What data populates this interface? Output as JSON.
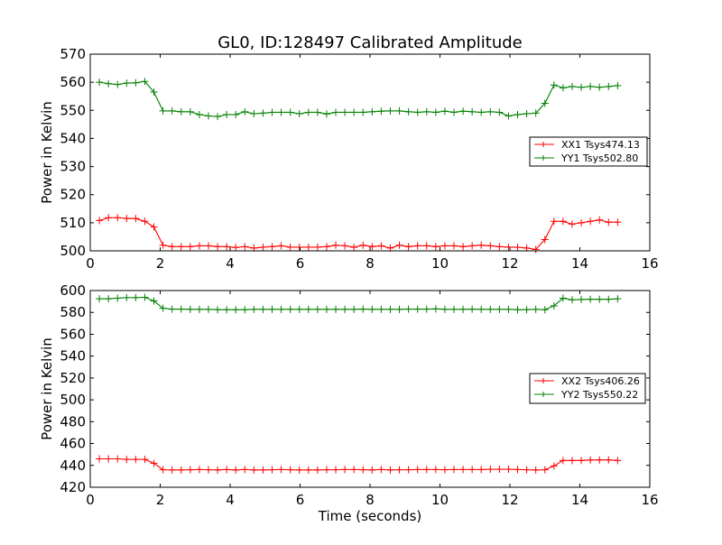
{
  "figure_title": "GL0, ID:128497 Calibrated Amplitude",
  "colors": {
    "red_series": "#ff0000",
    "green_series": "#008000",
    "axes": "#000000",
    "background": "#ffffff"
  },
  "chart_data": [
    {
      "type": "line",
      "title": "GL0, ID:128497 Calibrated Amplitude",
      "xlabel": "",
      "ylabel": "Power in Kelvin",
      "xlim": [
        0,
        16
      ],
      "ylim": [
        500,
        570
      ],
      "xticks": [
        0,
        2,
        4,
        6,
        8,
        10,
        12,
        14,
        16
      ],
      "yticks": [
        500,
        510,
        520,
        530,
        540,
        550,
        560,
        570
      ],
      "grid": false,
      "legend_position": "center-right",
      "marker": "+",
      "x": [
        0.26,
        0.52,
        0.78,
        1.04,
        1.3,
        1.56,
        1.82,
        2.08,
        2.34,
        2.6,
        2.86,
        3.12,
        3.38,
        3.64,
        3.9,
        4.16,
        4.42,
        4.68,
        4.94,
        5.2,
        5.46,
        5.72,
        5.98,
        6.24,
        6.5,
        6.76,
        7.02,
        7.28,
        7.54,
        7.8,
        8.06,
        8.32,
        8.58,
        8.84,
        9.1,
        9.36,
        9.62,
        9.88,
        10.14,
        10.4,
        10.66,
        10.92,
        11.18,
        11.44,
        11.7,
        11.96,
        12.22,
        12.48,
        12.74,
        13.0,
        13.26,
        13.52,
        13.78,
        14.04,
        14.3,
        14.56,
        14.82,
        15.08
      ],
      "series": [
        {
          "name": "XX1 Tsys474.13",
          "color": "#ff0000",
          "values": [
            510.8,
            511.8,
            511.8,
            511.5,
            511.5,
            510.5,
            508.5,
            502.0,
            501.5,
            501.5,
            501.5,
            501.8,
            501.8,
            501.5,
            501.5,
            501.2,
            501.5,
            501.0,
            501.3,
            501.5,
            501.8,
            501.3,
            501.3,
            501.3,
            501.3,
            501.5,
            502.0,
            501.8,
            501.3,
            502.0,
            501.5,
            501.8,
            501.0,
            502.0,
            501.5,
            501.8,
            501.8,
            501.5,
            501.8,
            501.8,
            501.5,
            501.8,
            502.0,
            501.8,
            501.5,
            501.3,
            501.3,
            501.0,
            500.5,
            504.0,
            510.5,
            510.5,
            509.5,
            510.0,
            510.5,
            511.0,
            510.2,
            510.2
          ]
        },
        {
          "name": "YY1 Tsys502.80",
          "color": "#008000",
          "values": [
            560.0,
            559.5,
            559.2,
            559.7,
            559.8,
            560.3,
            556.5,
            549.8,
            549.8,
            549.5,
            549.5,
            548.5,
            548.0,
            547.8,
            548.5,
            548.5,
            549.5,
            548.8,
            549.0,
            549.3,
            549.3,
            549.3,
            548.8,
            549.3,
            549.3,
            548.7,
            549.3,
            549.3,
            549.3,
            549.3,
            549.5,
            549.7,
            549.8,
            549.8,
            549.5,
            549.3,
            549.5,
            549.3,
            549.7,
            549.3,
            549.7,
            549.5,
            549.3,
            549.5,
            549.3,
            548.0,
            548.5,
            548.8,
            549.0,
            552.5,
            559.0,
            558.0,
            558.5,
            558.2,
            558.5,
            558.2,
            558.5,
            558.8
          ]
        }
      ]
    },
    {
      "type": "line",
      "title": "",
      "xlabel": "Time (seconds)",
      "ylabel": "Power in Kelvin",
      "xlim": [
        0,
        16
      ],
      "ylim": [
        420,
        600
      ],
      "xticks": [
        0,
        2,
        4,
        6,
        8,
        10,
        12,
        14,
        16
      ],
      "yticks": [
        420,
        440,
        460,
        480,
        500,
        520,
        540,
        560,
        580,
        600
      ],
      "grid": false,
      "legend_position": "center-right",
      "marker": "+",
      "x": [
        0.26,
        0.52,
        0.78,
        1.04,
        1.3,
        1.56,
        1.82,
        2.08,
        2.34,
        2.6,
        2.86,
        3.12,
        3.38,
        3.64,
        3.9,
        4.16,
        4.42,
        4.68,
        4.94,
        5.2,
        5.46,
        5.72,
        5.98,
        6.24,
        6.5,
        6.76,
        7.02,
        7.28,
        7.54,
        7.8,
        8.06,
        8.32,
        8.58,
        8.84,
        9.1,
        9.36,
        9.62,
        9.88,
        10.14,
        10.4,
        10.66,
        10.92,
        11.18,
        11.44,
        11.7,
        11.96,
        12.22,
        12.48,
        12.74,
        13.0,
        13.26,
        13.52,
        13.78,
        14.04,
        14.3,
        14.56,
        14.82,
        15.08
      ],
      "series": [
        {
          "name": "XX2 Tsys406.26",
          "color": "#ff0000",
          "values": [
            446.0,
            446.0,
            446.0,
            445.5,
            445.5,
            445.5,
            442.0,
            436.0,
            435.8,
            435.8,
            436.0,
            436.2,
            436.0,
            435.8,
            436.2,
            435.8,
            436.2,
            435.8,
            435.8,
            436.0,
            436.2,
            436.0,
            435.8,
            435.8,
            435.8,
            436.0,
            436.0,
            436.2,
            436.2,
            436.0,
            435.8,
            436.2,
            435.8,
            436.0,
            436.0,
            436.2,
            436.2,
            436.2,
            436.0,
            436.2,
            436.2,
            436.2,
            436.2,
            436.5,
            436.5,
            436.5,
            436.2,
            436.0,
            435.8,
            436.0,
            439.5,
            444.5,
            444.5,
            444.5,
            445.0,
            445.0,
            445.0,
            444.5
          ]
        },
        {
          "name": "YY2 Tsys550.22",
          "color": "#008000",
          "values": [
            592.5,
            592.5,
            593.0,
            593.5,
            593.5,
            593.8,
            590.5,
            583.8,
            583.0,
            583.0,
            582.8,
            582.8,
            582.8,
            582.5,
            582.5,
            582.5,
            582.5,
            582.8,
            582.8,
            582.8,
            582.8,
            582.8,
            582.8,
            582.8,
            582.8,
            582.8,
            582.8,
            582.8,
            582.8,
            583.0,
            582.8,
            582.8,
            582.8,
            582.8,
            583.0,
            583.0,
            583.0,
            583.2,
            582.8,
            582.8,
            582.8,
            583.0,
            582.8,
            582.8,
            582.8,
            582.8,
            582.5,
            582.5,
            582.8,
            582.5,
            586.0,
            593.0,
            591.5,
            591.8,
            592.0,
            592.0,
            592.0,
            592.5
          ]
        }
      ]
    }
  ]
}
